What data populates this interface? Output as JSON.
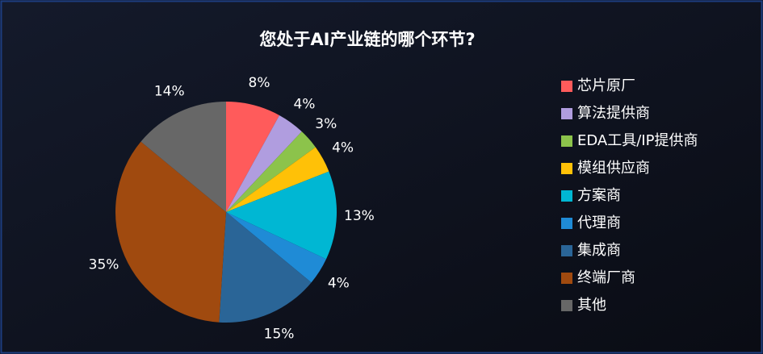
{
  "chart_data": {
    "type": "pie",
    "title": "您处于AI产业链的哪个环节?",
    "categories": [
      "芯片原厂",
      "算法提供商",
      "EDA工具/IP提供商",
      "模组供应商",
      "方案商",
      "代理商",
      "集成商",
      "终端厂商",
      "其他"
    ],
    "values": [
      8,
      4,
      3,
      4,
      13,
      4,
      15,
      35,
      14
    ],
    "value_labels": [
      "8%",
      "4%",
      "3%",
      "4%",
      "13%",
      "4%",
      "15%",
      "35%",
      "14%"
    ],
    "colors": [
      "#ff5b5b",
      "#b09ddf",
      "#8cc34b",
      "#ffc107",
      "#00b7d3",
      "#1f8bd6",
      "#2a6597",
      "#a04a0f",
      "#676767"
    ],
    "legend": "right"
  }
}
